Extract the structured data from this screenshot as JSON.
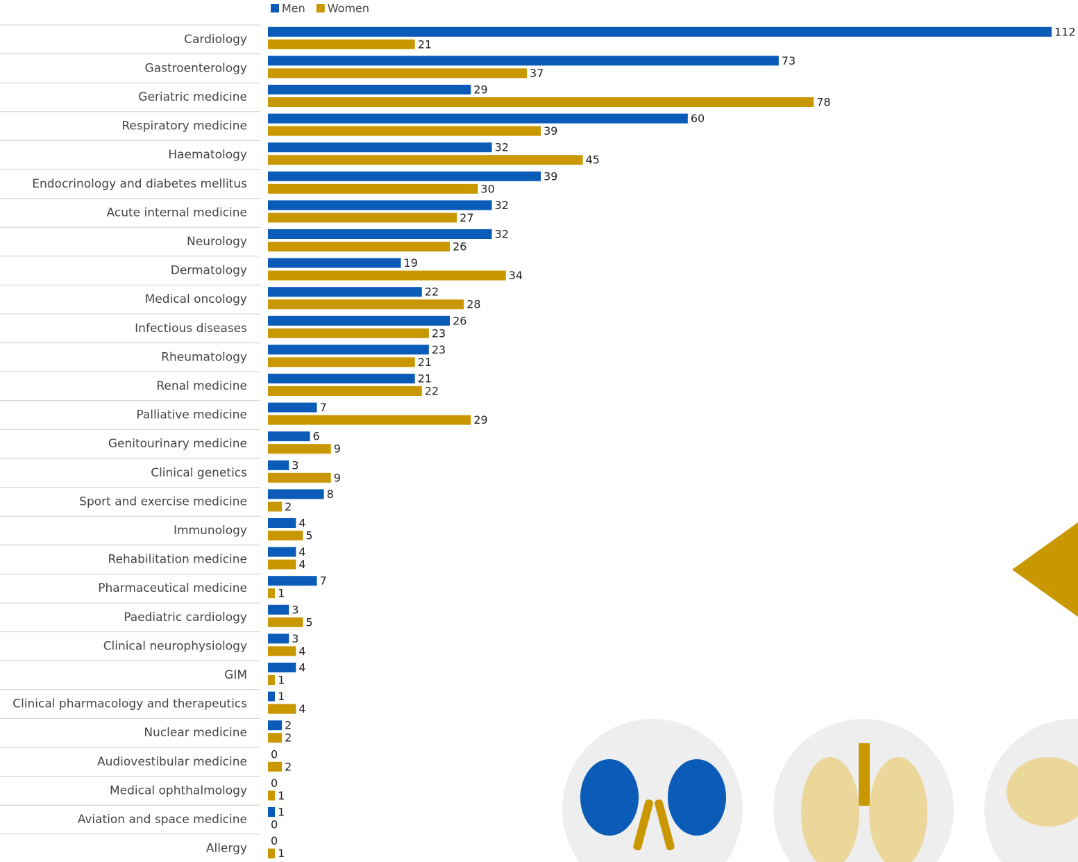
{
  "chart_data": {
    "type": "hbar-grouped",
    "categories": [
      "Cardiology",
      "Gastroenterology",
      "Geriatric medicine",
      "Respiratory medicine",
      "Haematology",
      "Endocrinology and diabetes mellitus",
      "Acute internal medicine",
      "Neurology",
      "Dermatology",
      "Medical oncology",
      "Infectious diseases",
      "Rheumatology",
      "Renal medicine",
      "Palliative medicine",
      "Genitourinary medicine",
      "Clinical genetics",
      "Sport and exercise medicine",
      "Immunology",
      "Rehabilitation medicine",
      "Pharmaceutical medicine",
      "Paediatric cardiology",
      "Clinical neurophysiology",
      "GIM",
      "Clinical pharmacology and therapeutics",
      "Nuclear medicine",
      "Audiovestibular medicine",
      "Medical ophthalmology",
      "Aviation and space medicine",
      "Allergy"
    ],
    "series": [
      {
        "name": "Men",
        "color": "#0a5cb8",
        "values": [
          112,
          73,
          29,
          60,
          32,
          39,
          32,
          32,
          19,
          22,
          26,
          23,
          21,
          7,
          6,
          3,
          8,
          4,
          4,
          7,
          3,
          3,
          4,
          1,
          2,
          0,
          0,
          1,
          0
        ]
      },
      {
        "name": "Women",
        "color": "#c99700",
        "values": [
          21,
          37,
          78,
          39,
          45,
          30,
          27,
          26,
          34,
          28,
          23,
          21,
          22,
          29,
          9,
          9,
          2,
          5,
          4,
          1,
          5,
          4,
          1,
          4,
          2,
          2,
          1,
          0,
          1
        ]
      }
    ],
    "xlim": [
      0,
      112
    ],
    "legend": "top-left"
  }
}
